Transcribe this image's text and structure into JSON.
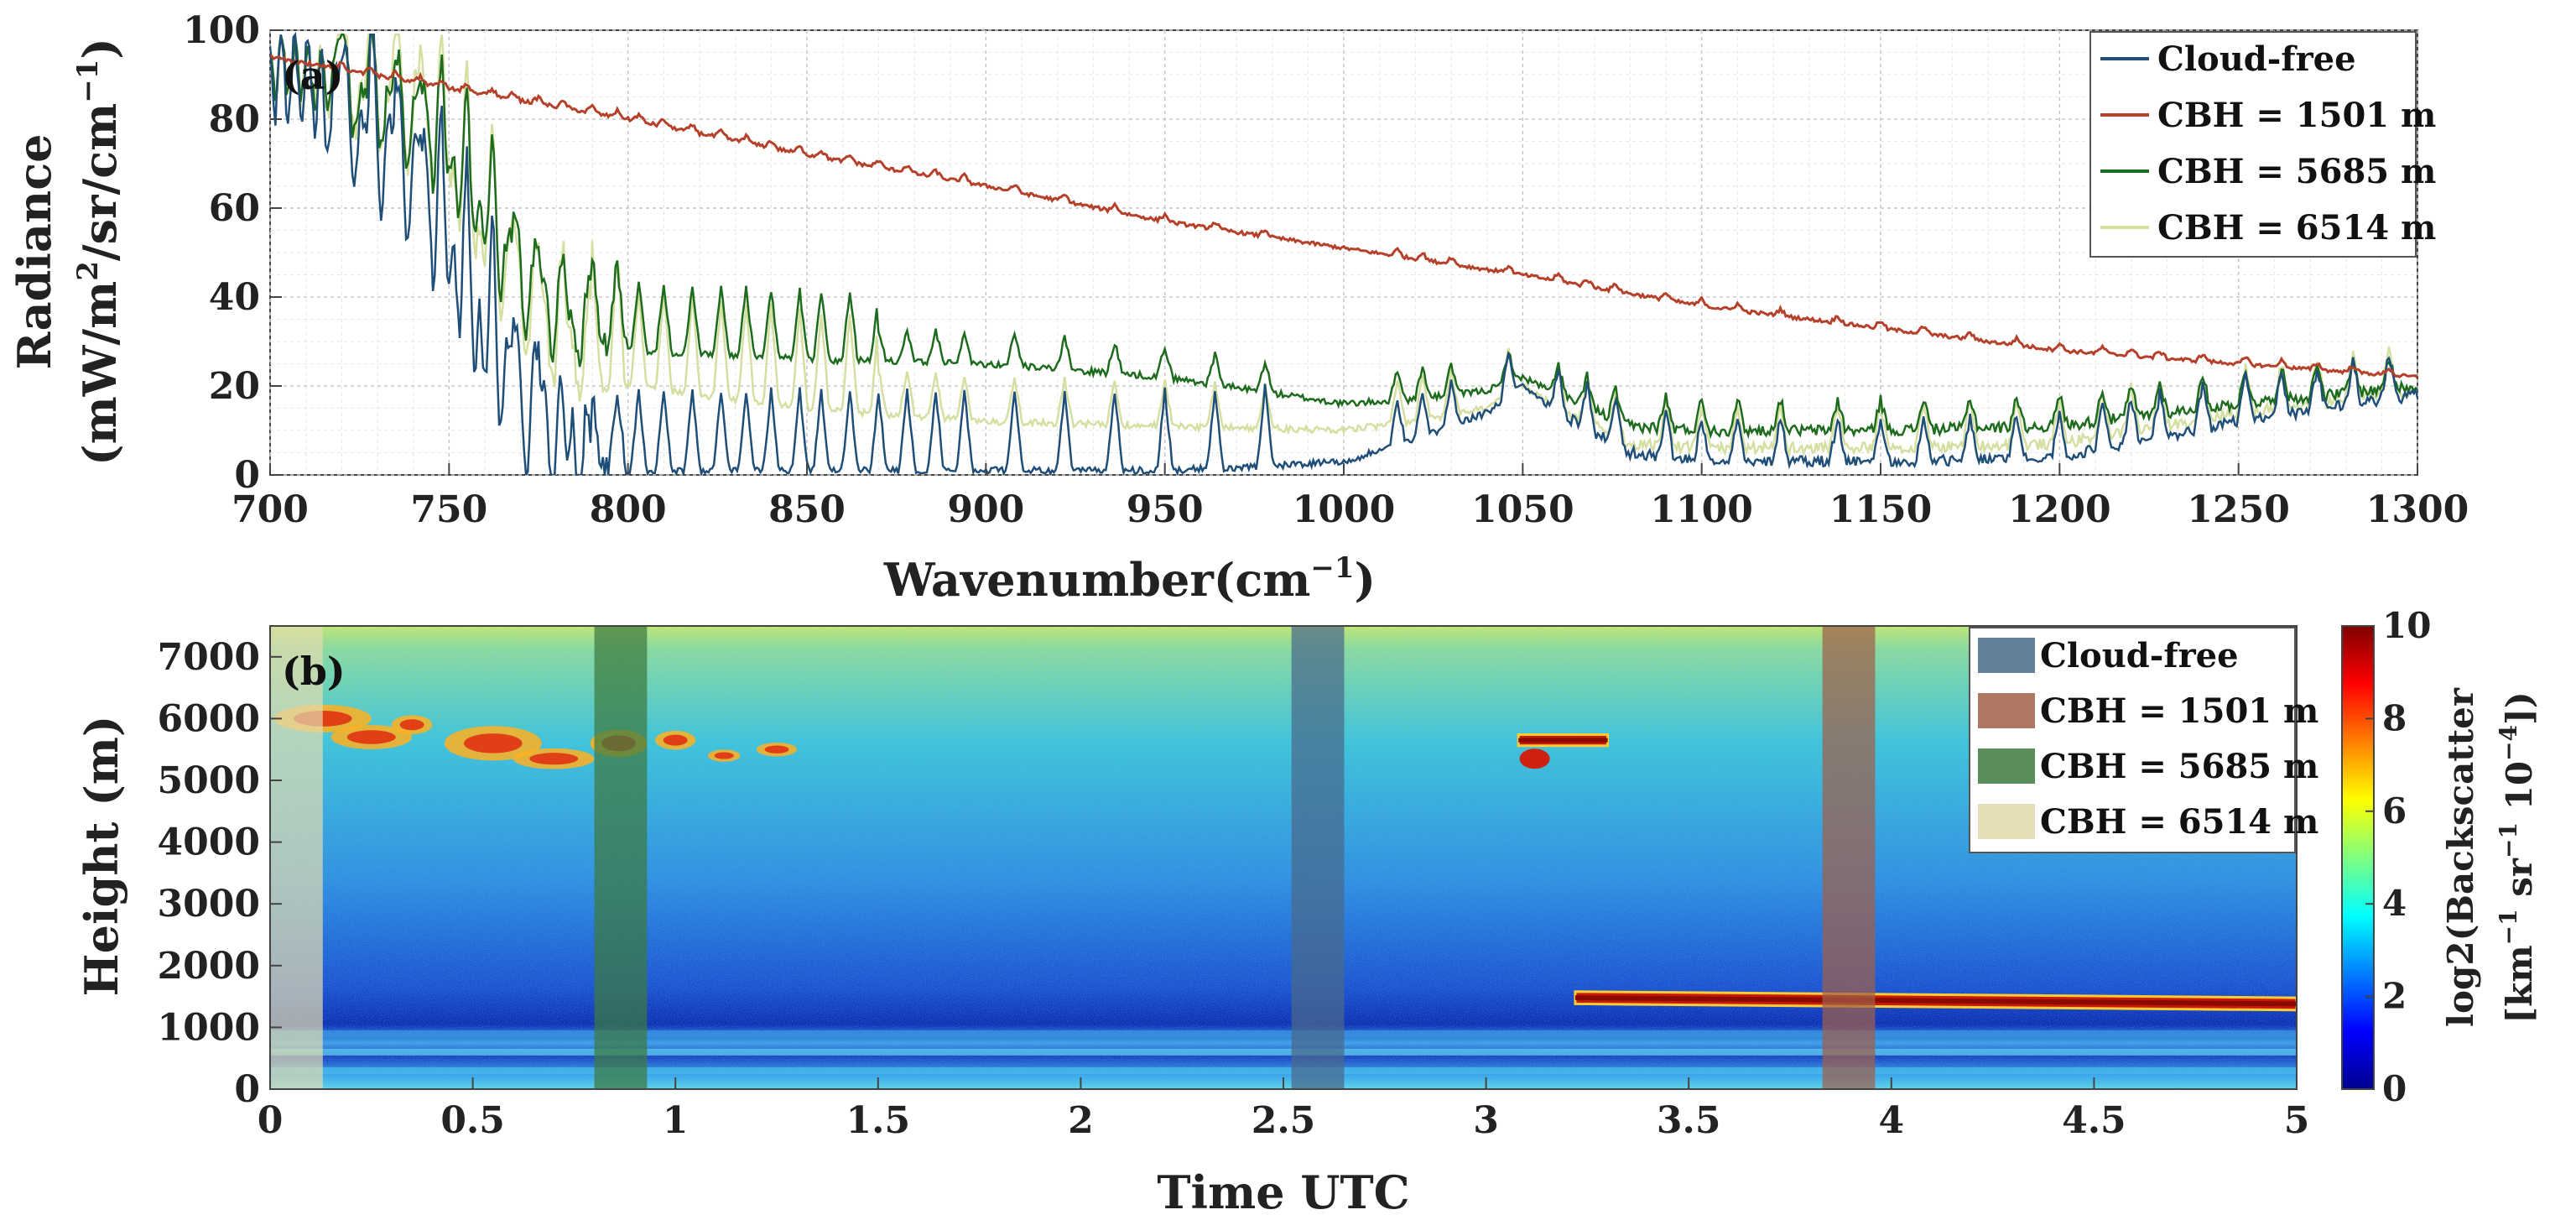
{
  "chart_data": [
    {
      "panel": "(a)",
      "type": "line",
      "xlabel": "Wavenumber(cm",
      "xlabel_sup": "−1",
      "xlabel_close": ")",
      "ylabel_line1": "Radiance",
      "ylabel_line2": "(mW/m",
      "ylabel_sup2": "2",
      "ylabel_mid": "/sr/cm",
      "ylabel_sup3": "−1",
      "ylabel_close": ")",
      "xlim": [
        700,
        1300
      ],
      "ylim": [
        0,
        100
      ],
      "xticks": [
        "700",
        "750",
        "800",
        "850",
        "900",
        "950",
        "1000",
        "1050",
        "1100",
        "1150",
        "1200",
        "1250",
        "1300"
      ],
      "yticks": [
        "0",
        "20",
        "40",
        "60",
        "80",
        "100"
      ],
      "grid": true,
      "legend_position": "top-right",
      "series": [
        {
          "name": "Cloud-free",
          "color": "#1f4e79",
          "anchors_x": [
            700,
            712,
            720,
            730,
            740,
            750,
            760,
            770,
            780,
            800,
            850,
            900,
            950,
            980,
            1000,
            1020,
            1040,
            1050,
            1060,
            1080,
            1100,
            1150,
            1200,
            1250,
            1300
          ],
          "anchors_y": [
            91,
            88,
            75,
            70,
            62,
            45,
            25,
            10,
            3,
            1,
            1,
            1,
            1,
            2,
            3,
            8,
            14,
            20,
            14,
            5,
            3,
            3,
            4,
            12,
            18
          ]
        },
        {
          "name": "CBH = 1501 m",
          "color": "#b5412b",
          "anchors_x": [
            700,
            750,
            800,
            850,
            900,
            950,
            1000,
            1050,
            1100,
            1150,
            1200,
            1250,
            1300
          ],
          "anchors_y": [
            94,
            87,
            80,
            72,
            65,
            57,
            51,
            45,
            38,
            33,
            28,
            25,
            22
          ]
        },
        {
          "name": "CBH = 5685 m",
          "color": "#1d6b1d",
          "anchors_x": [
            700,
            712,
            720,
            730,
            740,
            750,
            760,
            770,
            780,
            790,
            800,
            850,
            900,
            950,
            1000,
            1020,
            1040,
            1050,
            1060,
            1080,
            1100,
            1150,
            1200,
            1250,
            1300
          ],
          "anchors_y": [
            92,
            90,
            84,
            80,
            76,
            68,
            52,
            40,
            32,
            30,
            28,
            26,
            25,
            22,
            16,
            17,
            19,
            22,
            18,
            11,
            10,
            10,
            11,
            16,
            20
          ]
        },
        {
          "name": "CBH = 6514 m",
          "color": "#d4dfa0",
          "anchors_x": [
            700,
            712,
            720,
            730,
            740,
            750,
            760,
            770,
            780,
            790,
            800,
            850,
            900,
            950,
            1000,
            1020,
            1040,
            1050,
            1060,
            1080,
            1100,
            1150,
            1200,
            1250,
            1300
          ],
          "anchors_y": [
            92,
            90,
            84,
            79,
            75,
            66,
            48,
            34,
            25,
            22,
            20,
            15,
            12,
            11,
            10,
            12,
            15,
            20,
            15,
            7,
            6,
            6,
            7,
            14,
            19
          ]
        }
      ]
    },
    {
      "panel": "(b)",
      "type": "heatmap",
      "xlabel": "Time UTC",
      "ylabel": "Height (m)",
      "xlim": [
        0,
        5
      ],
      "ylim": [
        0,
        7500
      ],
      "xticks": [
        "0",
        "0.5",
        "1",
        "1.5",
        "2",
        "2.5",
        "3",
        "3.5",
        "4",
        "4.5",
        "5"
      ],
      "yticks": [
        "0",
        "1000",
        "2000",
        "3000",
        "4000",
        "5000",
        "6000",
        "7000"
      ],
      "colorbar": {
        "label_line1": "log2(Backscatter",
        "label_line2": "[km",
        "label_sup1": "−1",
        "label_mid": " sr",
        "label_sup2": "−1",
        "label_mid2": " 10",
        "label_sup3": "−4",
        "label_close": "])",
        "range": [
          0,
          10
        ],
        "ticks": [
          "0",
          "2",
          "4",
          "6",
          "8",
          "10"
        ]
      },
      "highlight_bands": [
        {
          "name": "Cloud-free",
          "x_start": 2.52,
          "x_end": 2.65,
          "color": "#4a6a8a"
        },
        {
          "name": "CBH = 1501 m",
          "x_start": 3.83,
          "x_end": 3.96,
          "color": "#a0604a"
        },
        {
          "name": "CBH = 5685 m",
          "x_start": 0.8,
          "x_end": 0.93,
          "color": "#3d7a40"
        },
        {
          "name": "CBH = 6514 m",
          "x_start": 0.0,
          "x_end": 0.13,
          "color": "#e2dcb0"
        }
      ],
      "cloud_layers": [
        {
          "x_start": 3.22,
          "x_end": 5.0,
          "height_start": 1480,
          "height_end": 1380,
          "thickness": 200
        },
        {
          "x_start": 3.08,
          "x_end": 3.3,
          "height_start": 5650,
          "height_end": 5650,
          "thickness": 180
        }
      ],
      "legend_position": "top-right"
    }
  ]
}
